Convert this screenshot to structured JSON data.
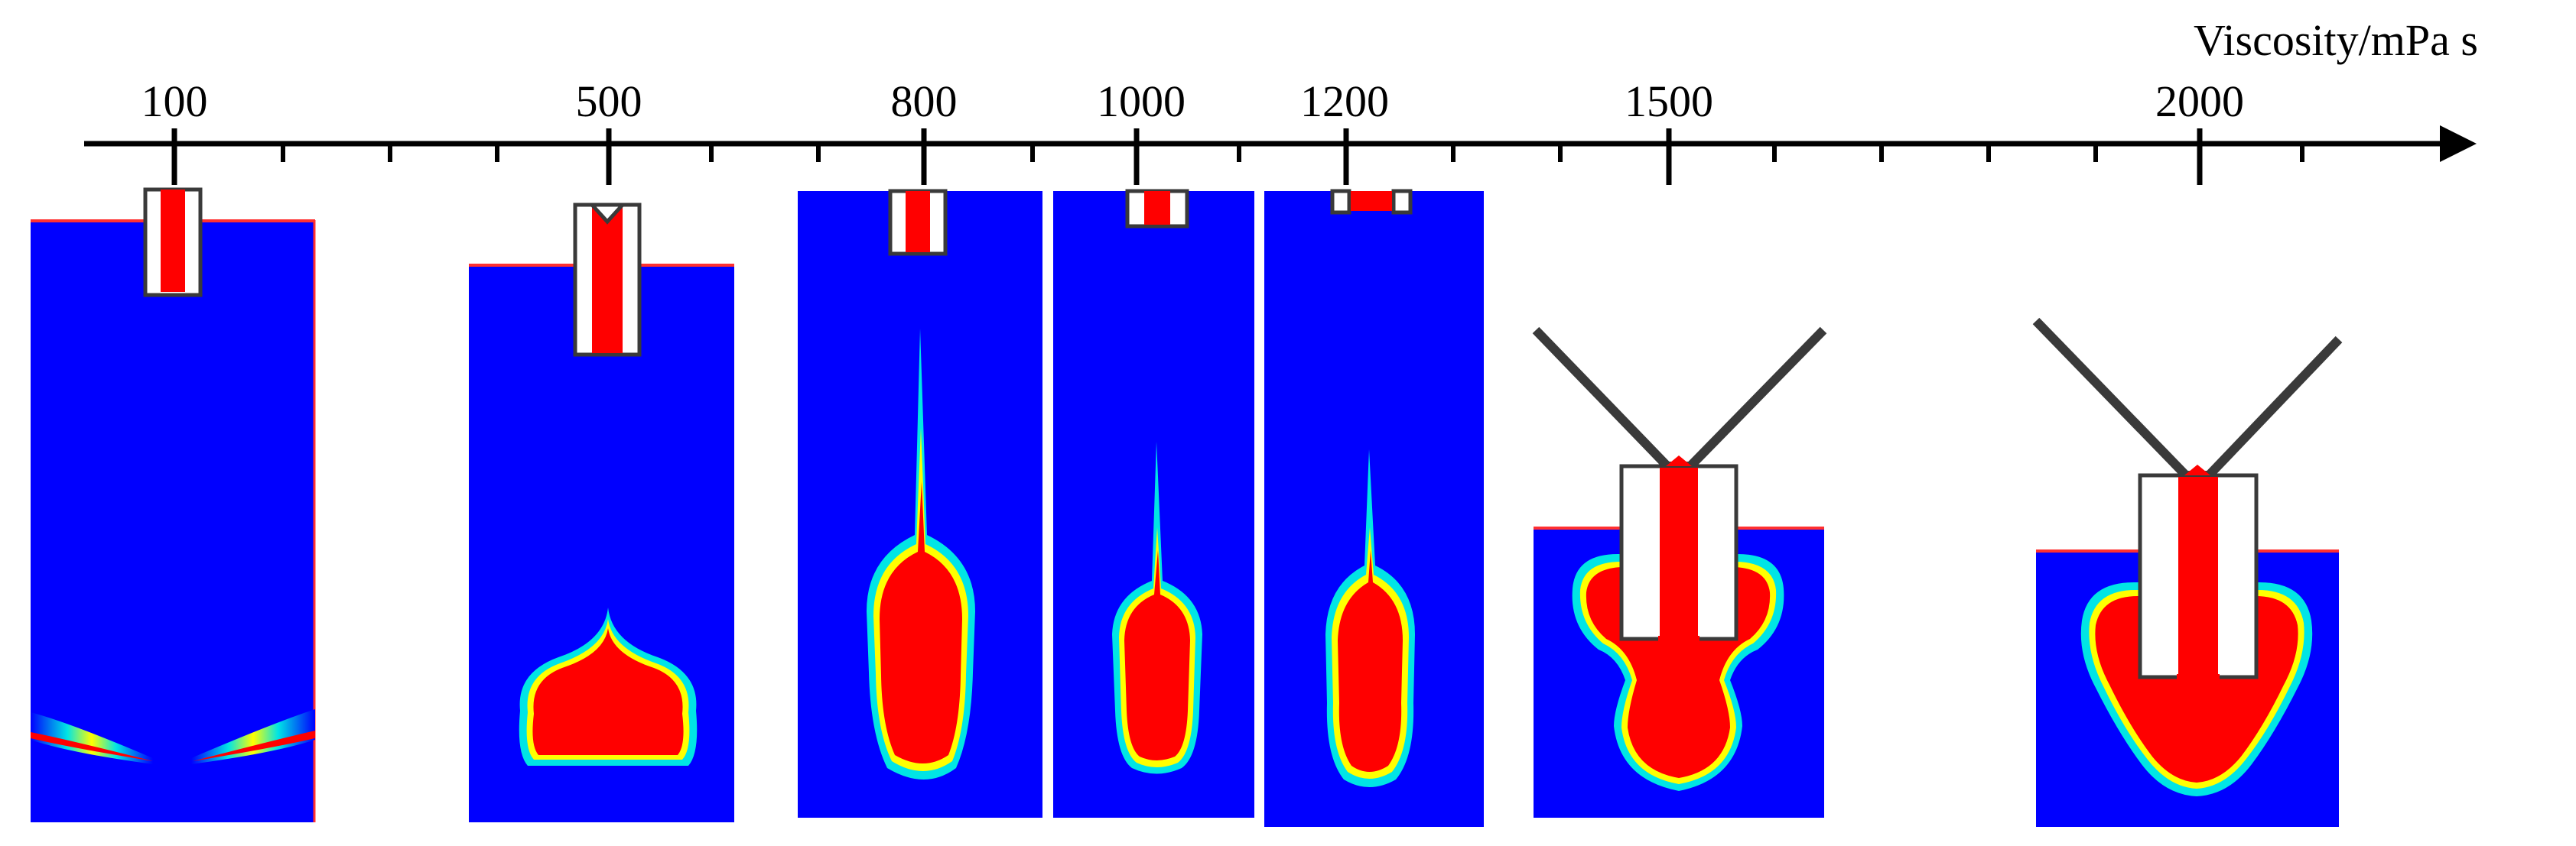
{
  "axis": {
    "title": "Viscosity/mPa s",
    "labels": [
      "100",
      "500",
      "800",
      "1000",
      "1200",
      "1500",
      "2000"
    ]
  },
  "colors": {
    "fluid_blue": "#0000ff",
    "droplet_red": "#ff0000",
    "interface_cyan": "#00e5e5",
    "interface_yellow": "#ffff00",
    "nozzle_gray": "#3a3a3a"
  },
  "panels": [
    {
      "viscosity": "100",
      "state": "detached droplet split into side filaments"
    },
    {
      "viscosity": "500",
      "state": "detached mushroom droplet"
    },
    {
      "viscosity": "800",
      "state": "elongated droplet with long tail"
    },
    {
      "viscosity": "1000",
      "state": "elongated droplet with thin tail"
    },
    {
      "viscosity": "1200",
      "state": "elongated droplet with thin tail"
    },
    {
      "viscosity": "1500",
      "state": "droplet attached to nozzle"
    },
    {
      "viscosity": "2000",
      "state": "droplet attached to nozzle"
    }
  ]
}
